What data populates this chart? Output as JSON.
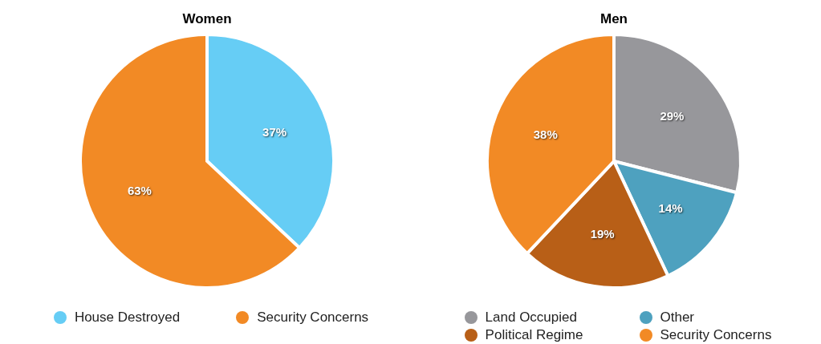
{
  "chart_data": [
    {
      "type": "pie",
      "title": "Women",
      "categories": [
        "House Destroyed",
        "Security Concerns"
      ],
      "values": [
        37,
        63
      ],
      "colors": [
        "#66cdf5",
        "#f28a25"
      ],
      "value_labels": [
        "37%",
        "63%"
      ],
      "legend": "bottom"
    },
    {
      "type": "pie",
      "title": "Men",
      "categories": [
        "Land Occupied",
        "Other",
        "Political Regime",
        "Security Concerns"
      ],
      "values": [
        29,
        14,
        19,
        38
      ],
      "colors": [
        "#97979b",
        "#4ea1bf",
        "#b85f17",
        "#f28a25"
      ],
      "value_labels": [
        "29%",
        "14%",
        "19%",
        "38%"
      ],
      "legend": "bottom"
    }
  ]
}
